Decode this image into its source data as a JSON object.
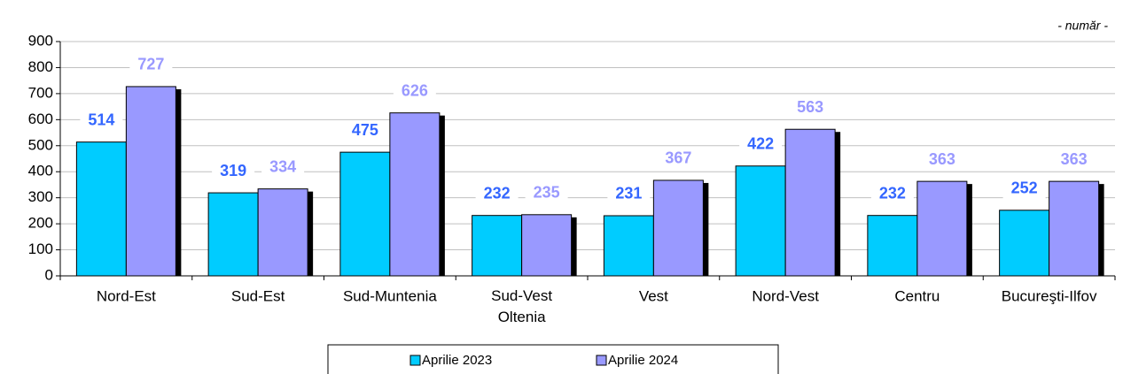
{
  "chart_data": {
    "type": "bar",
    "subtitle": "- număr -",
    "categories": [
      "Nord-Est",
      "Sud-Est",
      "Sud-Muntenia",
      "Sud-Vest Oltenia",
      "Vest",
      "Nord-Vest",
      "Centru",
      "Bucureşti-Ilfov"
    ],
    "series": [
      {
        "name": "Aprilie 2023",
        "color": "#00ccff",
        "label_color": "#3366ff",
        "values": [
          514,
          319,
          475,
          232,
          231,
          422,
          232,
          252
        ]
      },
      {
        "name": "Aprilie 2024",
        "color": "#9999ff",
        "label_color": "#9999ff",
        "values": [
          727,
          334,
          626,
          235,
          367,
          563,
          363,
          363
        ]
      }
    ],
    "ylim": [
      0,
      900
    ],
    "yticks": [
      0,
      100,
      200,
      300,
      400,
      500,
      600,
      700,
      800,
      900
    ],
    "grid": true
  }
}
